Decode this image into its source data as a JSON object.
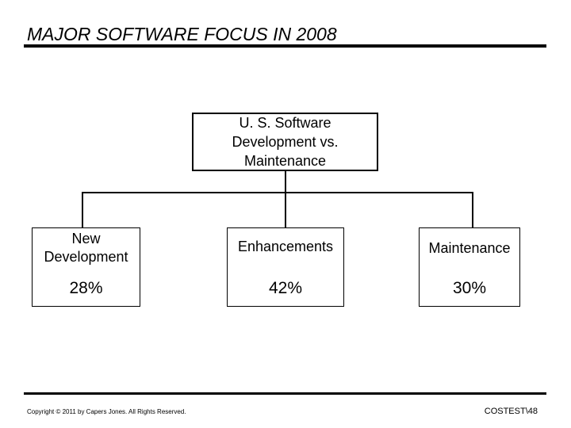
{
  "title": "MAJOR SOFTWARE FOCUS IN 2008",
  "root": {
    "line1": "U. S. Software",
    "line2": "Development vs.",
    "line3": "Maintenance"
  },
  "children": [
    {
      "label_line1": "New",
      "label_line2": "Development",
      "value": "28%"
    },
    {
      "label_line1": "Enhancements",
      "value": "42%"
    },
    {
      "label_line1": "Maintenance",
      "value": "30%"
    }
  ],
  "footer": {
    "copyright": "Copyright © 2011 by Capers Jones. All Rights Reserved.",
    "slide_ref": "COSTEST\\48"
  }
}
